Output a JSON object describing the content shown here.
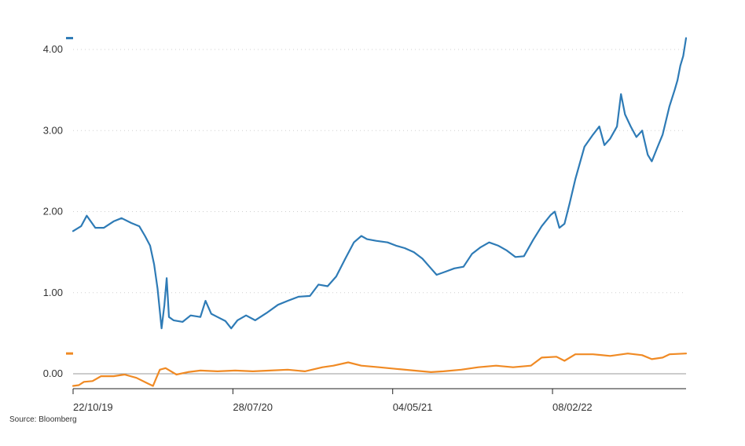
{
  "chart_data": {
    "type": "line",
    "source": "Source: Bloomberg",
    "ylim": [
      -0.2,
      4.15
    ],
    "yticks": [
      "4.00",
      "3.00",
      "2.00",
      "1.00",
      "0.00"
    ],
    "ytick_values": [
      4,
      3,
      2,
      1,
      0
    ],
    "x_range": [
      "2019-10-22",
      "2022-09-30"
    ],
    "xticks": [
      "22/10/19",
      "28/07/20",
      "04/05/21",
      "08/02/22"
    ],
    "xtick_dates": [
      "2019-10-22",
      "2020-07-28",
      "2021-05-04",
      "2022-02-08"
    ],
    "grid": "horizontal dotted",
    "legend": "none",
    "series": [
      {
        "color": "#2e7bb6",
        "points": [
          [
            "2019-10-22",
            1.76
          ],
          [
            "2019-11-05",
            1.82
          ],
          [
            "2019-11-15",
            1.95
          ],
          [
            "2019-11-30",
            1.8
          ],
          [
            "2019-12-15",
            1.8
          ],
          [
            "2020-01-01",
            1.88
          ],
          [
            "2020-01-15",
            1.92
          ],
          [
            "2020-02-01",
            1.86
          ],
          [
            "2020-02-15",
            1.82
          ],
          [
            "2020-02-25",
            1.7
          ],
          [
            "2020-03-05",
            1.58
          ],
          [
            "2020-03-12",
            1.35
          ],
          [
            "2020-03-18",
            1.05
          ],
          [
            "2020-03-25",
            0.56
          ],
          [
            "2020-03-30",
            0.85
          ],
          [
            "2020-04-03",
            1.18
          ],
          [
            "2020-04-07",
            0.7
          ],
          [
            "2020-04-15",
            0.66
          ],
          [
            "2020-05-01",
            0.64
          ],
          [
            "2020-05-15",
            0.72
          ],
          [
            "2020-06-01",
            0.7
          ],
          [
            "2020-06-10",
            0.9
          ],
          [
            "2020-06-20",
            0.74
          ],
          [
            "2020-07-01",
            0.7
          ],
          [
            "2020-07-15",
            0.65
          ],
          [
            "2020-07-25",
            0.56
          ],
          [
            "2020-08-05",
            0.66
          ],
          [
            "2020-08-20",
            0.72
          ],
          [
            "2020-09-05",
            0.66
          ],
          [
            "2020-09-25",
            0.75
          ],
          [
            "2020-10-15",
            0.85
          ],
          [
            "2020-11-01",
            0.9
          ],
          [
            "2020-11-20",
            0.95
          ],
          [
            "2020-12-10",
            0.96
          ],
          [
            "2020-12-25",
            1.1
          ],
          [
            "2021-01-10",
            1.08
          ],
          [
            "2021-01-25",
            1.2
          ],
          [
            "2021-02-10",
            1.42
          ],
          [
            "2021-02-25",
            1.62
          ],
          [
            "2021-03-10",
            1.7
          ],
          [
            "2021-03-20",
            1.66
          ],
          [
            "2021-04-05",
            1.64
          ],
          [
            "2021-04-25",
            1.62
          ],
          [
            "2021-05-10",
            1.58
          ],
          [
            "2021-05-25",
            1.55
          ],
          [
            "2021-06-10",
            1.5
          ],
          [
            "2021-06-25",
            1.42
          ],
          [
            "2021-07-10",
            1.3
          ],
          [
            "2021-07-20",
            1.22
          ],
          [
            "2021-08-05",
            1.26
          ],
          [
            "2021-08-20",
            1.3
          ],
          [
            "2021-09-05",
            1.32
          ],
          [
            "2021-09-20",
            1.48
          ],
          [
            "2021-10-05",
            1.56
          ],
          [
            "2021-10-20",
            1.62
          ],
          [
            "2021-11-05",
            1.58
          ],
          [
            "2021-11-20",
            1.52
          ],
          [
            "2021-12-05",
            1.44
          ],
          [
            "2021-12-20",
            1.45
          ],
          [
            "2022-01-05",
            1.65
          ],
          [
            "2022-01-20",
            1.82
          ],
          [
            "2022-02-05",
            1.96
          ],
          [
            "2022-02-12",
            2.0
          ],
          [
            "2022-02-20",
            1.8
          ],
          [
            "2022-03-01",
            1.85
          ],
          [
            "2022-03-10",
            2.1
          ],
          [
            "2022-03-20",
            2.4
          ],
          [
            "2022-04-05",
            2.8
          ],
          [
            "2022-04-20",
            2.95
          ],
          [
            "2022-05-01",
            3.05
          ],
          [
            "2022-05-10",
            2.82
          ],
          [
            "2022-05-20",
            2.9
          ],
          [
            "2022-06-01",
            3.05
          ],
          [
            "2022-06-08",
            3.45
          ],
          [
            "2022-06-15",
            3.2
          ],
          [
            "2022-06-25",
            3.05
          ],
          [
            "2022-07-05",
            2.92
          ],
          [
            "2022-07-15",
            3.0
          ],
          [
            "2022-07-25",
            2.7
          ],
          [
            "2022-08-01",
            2.62
          ],
          [
            "2022-08-10",
            2.78
          ],
          [
            "2022-08-20",
            2.95
          ],
          [
            "2022-09-01",
            3.3
          ],
          [
            "2022-09-10",
            3.5
          ],
          [
            "2022-09-15",
            3.62
          ],
          [
            "2022-09-20",
            3.8
          ],
          [
            "2022-09-25",
            3.92
          ],
          [
            "2022-09-30",
            4.14
          ]
        ]
      },
      {
        "color": "#f08a24",
        "points": [
          [
            "2019-10-22",
            -0.15
          ],
          [
            "2019-11-01",
            -0.14
          ],
          [
            "2019-11-10",
            -0.1
          ],
          [
            "2019-11-25",
            -0.09
          ],
          [
            "2019-12-10",
            -0.03
          ],
          [
            "2020-01-01",
            -0.03
          ],
          [
            "2020-01-20",
            -0.01
          ],
          [
            "2020-02-10",
            -0.05
          ],
          [
            "2020-03-01",
            -0.12
          ],
          [
            "2020-03-10",
            -0.15
          ],
          [
            "2020-03-16",
            -0.05
          ],
          [
            "2020-03-22",
            0.05
          ],
          [
            "2020-04-01",
            0.07
          ],
          [
            "2020-04-20",
            -0.01
          ],
          [
            "2020-05-10",
            0.02
          ],
          [
            "2020-06-01",
            0.04
          ],
          [
            "2020-07-01",
            0.03
          ],
          [
            "2020-08-01",
            0.04
          ],
          [
            "2020-09-01",
            0.03
          ],
          [
            "2020-10-01",
            0.04
          ],
          [
            "2020-11-01",
            0.05
          ],
          [
            "2020-12-01",
            0.03
          ],
          [
            "2021-01-01",
            0.08
          ],
          [
            "2021-01-20",
            0.1
          ],
          [
            "2021-02-15",
            0.14
          ],
          [
            "2021-03-10",
            0.1
          ],
          [
            "2021-04-10",
            0.08
          ],
          [
            "2021-05-10",
            0.06
          ],
          [
            "2021-06-10",
            0.04
          ],
          [
            "2021-07-10",
            0.02
          ],
          [
            "2021-08-01",
            0.03
          ],
          [
            "2021-09-01",
            0.05
          ],
          [
            "2021-10-01",
            0.08
          ],
          [
            "2021-11-01",
            0.1
          ],
          [
            "2021-12-01",
            0.08
          ],
          [
            "2022-01-01",
            0.1
          ],
          [
            "2022-01-20",
            0.2
          ],
          [
            "2022-02-15",
            0.21
          ],
          [
            "2022-03-01",
            0.16
          ],
          [
            "2022-03-20",
            0.24
          ],
          [
            "2022-04-20",
            0.24
          ],
          [
            "2022-05-20",
            0.22
          ],
          [
            "2022-06-20",
            0.25
          ],
          [
            "2022-07-15",
            0.23
          ],
          [
            "2022-08-01",
            0.18
          ],
          [
            "2022-08-20",
            0.2
          ],
          [
            "2022-09-01",
            0.24
          ],
          [
            "2022-09-30",
            0.25
          ]
        ]
      }
    ]
  }
}
